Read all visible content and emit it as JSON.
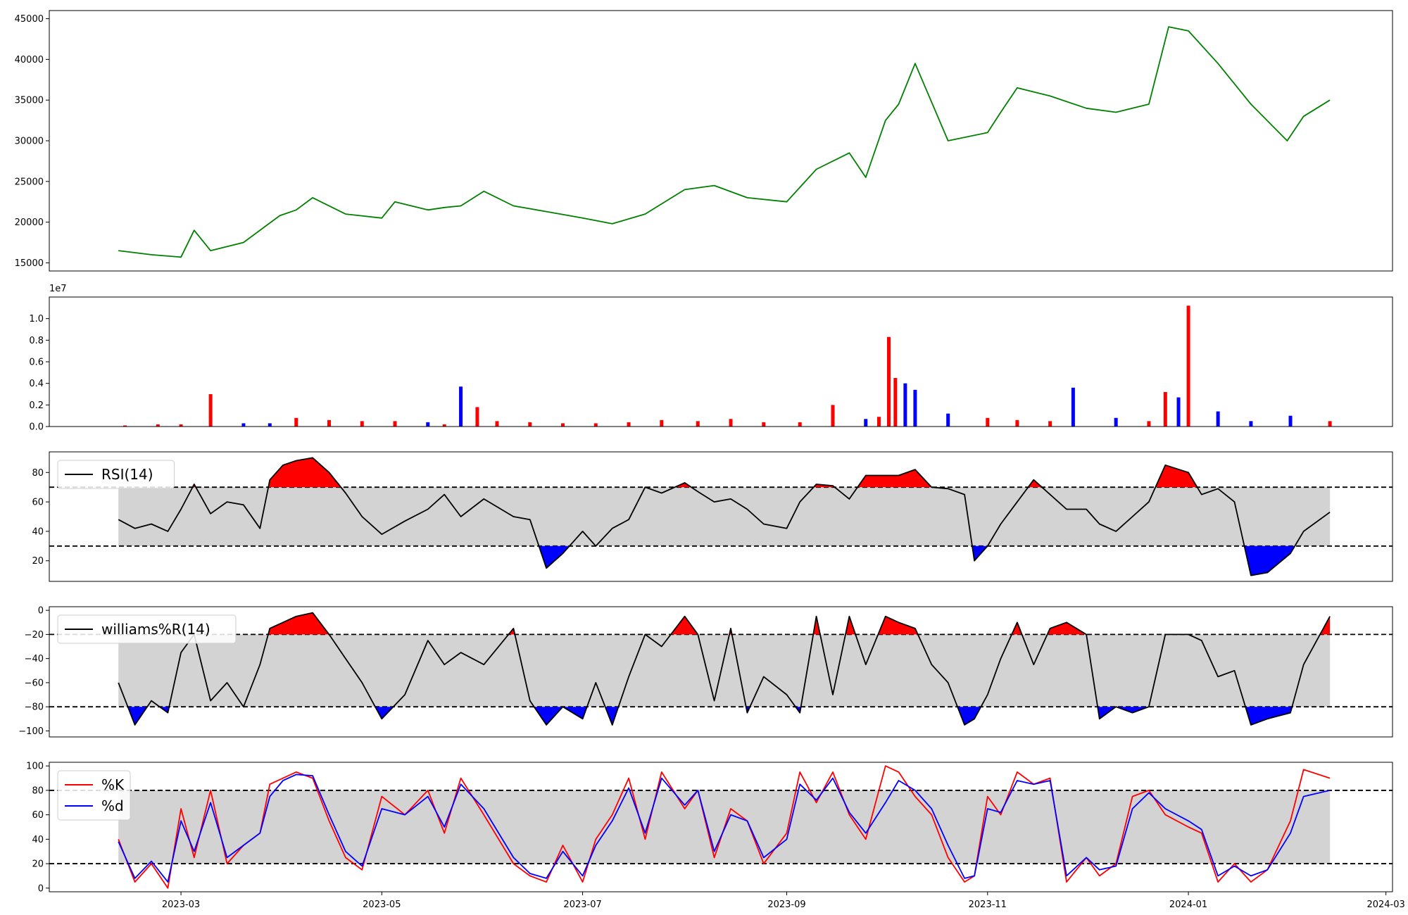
{
  "chart_data": [
    {
      "type": "line",
      "panel": "price",
      "ylim": [
        14000,
        46000
      ],
      "yticks": [
        15000,
        20000,
        25000,
        30000,
        35000,
        40000,
        45000
      ],
      "color": "#008000",
      "x": [
        "2023-02-10",
        "2023-02-20",
        "2023-03-01",
        "2023-03-05",
        "2023-03-10",
        "2023-03-20",
        "2023-03-31",
        "2023-04-05",
        "2023-04-10",
        "2023-04-20",
        "2023-05-01",
        "2023-05-05",
        "2023-05-15",
        "2023-05-20",
        "2023-05-25",
        "2023-06-01",
        "2023-06-10",
        "2023-06-20",
        "2023-07-01",
        "2023-07-10",
        "2023-07-20",
        "2023-08-01",
        "2023-08-10",
        "2023-08-20",
        "2023-09-01",
        "2023-09-10",
        "2023-09-20",
        "2023-09-25",
        "2023-10-01",
        "2023-10-05",
        "2023-10-10",
        "2023-10-20",
        "2023-11-01",
        "2023-11-05",
        "2023-11-10",
        "2023-11-20",
        "2023-12-01",
        "2023-12-10",
        "2023-12-20",
        "2023-12-26",
        "2024-01-01",
        "2024-01-10",
        "2024-01-20",
        "2024-01-31",
        "2024-02-05",
        "2024-02-13"
      ],
      "values": [
        16500,
        16000,
        15700,
        19000,
        16500,
        17500,
        20800,
        21500,
        23000,
        21000,
        20500,
        22500,
        21500,
        21800,
        22000,
        23800,
        22000,
        21300,
        20500,
        19800,
        21000,
        24000,
        24500,
        23000,
        22500,
        26500,
        28500,
        25500,
        32500,
        34500,
        39500,
        30000,
        31000,
        33500,
        36500,
        35500,
        34000,
        33500,
        34500,
        44000,
        43500,
        39500,
        34500,
        30000,
        33000,
        35000
      ]
    },
    {
      "type": "bar",
      "panel": "volume",
      "ylim": [
        0,
        1.2
      ],
      "yticks": [
        0.0,
        0.2,
        0.4,
        0.6,
        0.8,
        1.0
      ],
      "ytick_labels": [
        "0.0",
        "0.2",
        "0.4",
        "0.6",
        "0.8",
        "1.0"
      ],
      "scale_label": "1e7",
      "up_color": "#ff0000",
      "down_color": "#0000ff",
      "flat_color": "#000000",
      "x": [
        "2023-02-12",
        "2023-02-22",
        "2023-03-01",
        "2023-03-10",
        "2023-03-20",
        "2023-03-28",
        "2023-04-05",
        "2023-04-15",
        "2023-04-25",
        "2023-05-05",
        "2023-05-15",
        "2023-05-20",
        "2023-05-25",
        "2023-05-30",
        "2023-06-05",
        "2023-06-15",
        "2023-06-25",
        "2023-07-05",
        "2023-07-15",
        "2023-07-25",
        "2023-08-05",
        "2023-08-15",
        "2023-08-25",
        "2023-09-05",
        "2023-09-15",
        "2023-09-25",
        "2023-09-29",
        "2023-10-02",
        "2023-10-04",
        "2023-10-07",
        "2023-10-10",
        "2023-10-20",
        "2023-11-01",
        "2023-11-10",
        "2023-11-20",
        "2023-11-27",
        "2023-12-10",
        "2023-12-20",
        "2023-12-25",
        "2023-12-29",
        "2024-01-01",
        "2024-01-10",
        "2024-01-20",
        "2024-02-01",
        "2024-02-13"
      ],
      "values": [
        0.01,
        0.02,
        0.02,
        0.3,
        0.03,
        0.03,
        0.08,
        0.06,
        0.05,
        0.05,
        0.04,
        0.02,
        0.37,
        0.18,
        0.05,
        0.04,
        0.03,
        0.03,
        0.04,
        0.06,
        0.05,
        0.07,
        0.04,
        0.04,
        0.2,
        0.07,
        0.09,
        0.83,
        0.45,
        0.4,
        0.34,
        0.12,
        0.08,
        0.06,
        0.05,
        0.36,
        0.08,
        0.05,
        0.32,
        0.27,
        1.12,
        0.14,
        0.05,
        0.1,
        0.05
      ],
      "directions": [
        "up",
        "up",
        "up",
        "up",
        "down",
        "down",
        "up",
        "up",
        "up",
        "up",
        "down",
        "up",
        "down",
        "up",
        "up",
        "up",
        "up",
        "up",
        "up",
        "up",
        "up",
        "up",
        "up",
        "up",
        "up",
        "down",
        "up",
        "up",
        "up",
        "down",
        "down",
        "down",
        "up",
        "up",
        "up",
        "down",
        "down",
        "up",
        "up",
        "down",
        "up",
        "down",
        "down",
        "down",
        "up"
      ]
    },
    {
      "type": "line",
      "panel": "rsi",
      "ylim": [
        6,
        94
      ],
      "yticks": [
        20,
        40,
        60,
        80
      ],
      "upper": 70,
      "lower": 30,
      "series": [
        {
          "name": "RSI(14)",
          "color": "#000000"
        }
      ],
      "overbought_color": "#ff0000",
      "oversold_color": "#0000ff",
      "band_color": "#d3d3d3",
      "x": [
        "2023-02-10",
        "2023-02-15",
        "2023-02-20",
        "2023-02-25",
        "2023-03-01",
        "2023-03-05",
        "2023-03-10",
        "2023-03-15",
        "2023-03-20",
        "2023-03-25",
        "2023-03-28",
        "2023-04-01",
        "2023-04-05",
        "2023-04-10",
        "2023-04-15",
        "2023-04-20",
        "2023-04-25",
        "2023-05-01",
        "2023-05-08",
        "2023-05-15",
        "2023-05-20",
        "2023-05-25",
        "2023-06-01",
        "2023-06-10",
        "2023-06-15",
        "2023-06-20",
        "2023-06-25",
        "2023-07-01",
        "2023-07-05",
        "2023-07-10",
        "2023-07-15",
        "2023-07-20",
        "2023-07-25",
        "2023-08-01",
        "2023-08-05",
        "2023-08-10",
        "2023-08-15",
        "2023-08-20",
        "2023-08-25",
        "2023-09-01",
        "2023-09-05",
        "2023-09-10",
        "2023-09-15",
        "2023-09-20",
        "2023-09-25",
        "2023-10-01",
        "2023-10-05",
        "2023-10-10",
        "2023-10-15",
        "2023-10-20",
        "2023-10-25",
        "2023-10-28",
        "2023-11-01",
        "2023-11-05",
        "2023-11-10",
        "2023-11-15",
        "2023-11-20",
        "2023-11-25",
        "2023-12-01",
        "2023-12-05",
        "2023-12-10",
        "2023-12-15",
        "2023-12-20",
        "2023-12-25",
        "2024-01-01",
        "2024-01-05",
        "2024-01-10",
        "2024-01-15",
        "2024-01-20",
        "2024-01-25",
        "2024-02-01",
        "2024-02-05",
        "2024-02-13"
      ],
      "values": [
        48,
        42,
        45,
        40,
        55,
        72,
        52,
        60,
        58,
        42,
        75,
        85,
        88,
        90,
        80,
        66,
        50,
        38,
        47,
        55,
        65,
        50,
        62,
        50,
        48,
        15,
        25,
        40,
        30,
        42,
        48,
        70,
        66,
        73,
        67,
        60,
        62,
        55,
        45,
        42,
        60,
        72,
        71,
        62,
        78,
        78,
        78,
        82,
        70,
        69,
        65,
        20,
        30,
        45,
        60,
        75,
        65,
        55,
        55,
        45,
        40,
        50,
        60,
        85,
        80,
        65,
        69,
        60,
        10,
        12,
        25,
        40,
        53
      ]
    },
    {
      "type": "line",
      "panel": "williams",
      "ylim": [
        -105,
        3
      ],
      "yticks": [
        -100,
        -80,
        -60,
        -40,
        -20,
        0
      ],
      "ytick_labels": [
        "−100",
        "−80",
        "−60",
        "−40",
        "−20",
        "0"
      ],
      "upper": -20,
      "lower": -80,
      "series": [
        {
          "name": "williams%R(14)",
          "color": "#000000"
        }
      ],
      "overbought_color": "#ff0000",
      "oversold_color": "#0000ff",
      "band_color": "#d3d3d3",
      "x": [
        "2023-02-10",
        "2023-02-15",
        "2023-02-20",
        "2023-02-25",
        "2023-03-01",
        "2023-03-05",
        "2023-03-10",
        "2023-03-15",
        "2023-03-20",
        "2023-03-25",
        "2023-03-28",
        "2023-04-01",
        "2023-04-05",
        "2023-04-10",
        "2023-04-15",
        "2023-04-20",
        "2023-04-25",
        "2023-05-01",
        "2023-05-08",
        "2023-05-15",
        "2023-05-20",
        "2023-05-25",
        "2023-06-01",
        "2023-06-10",
        "2023-06-15",
        "2023-06-20",
        "2023-06-25",
        "2023-07-01",
        "2023-07-05",
        "2023-07-10",
        "2023-07-15",
        "2023-07-20",
        "2023-07-25",
        "2023-08-01",
        "2023-08-05",
        "2023-08-10",
        "2023-08-15",
        "2023-08-20",
        "2023-08-25",
        "2023-09-01",
        "2023-09-05",
        "2023-09-10",
        "2023-09-15",
        "2023-09-20",
        "2023-09-25",
        "2023-10-01",
        "2023-10-05",
        "2023-10-10",
        "2023-10-15",
        "2023-10-20",
        "2023-10-25",
        "2023-10-28",
        "2023-11-01",
        "2023-11-05",
        "2023-11-10",
        "2023-11-15",
        "2023-11-20",
        "2023-11-25",
        "2023-12-01",
        "2023-12-05",
        "2023-12-10",
        "2023-12-15",
        "2023-12-20",
        "2023-12-25",
        "2024-01-01",
        "2024-01-05",
        "2024-01-10",
        "2024-01-15",
        "2024-01-20",
        "2024-01-25",
        "2024-02-01",
        "2024-02-05",
        "2024-02-13"
      ],
      "values": [
        -60,
        -95,
        -75,
        -85,
        -35,
        -20,
        -75,
        -60,
        -80,
        -45,
        -15,
        -10,
        -5,
        -2,
        -20,
        -40,
        -60,
        -90,
        -70,
        -25,
        -45,
        -35,
        -45,
        -15,
        -75,
        -95,
        -80,
        -90,
        -60,
        -95,
        -55,
        -20,
        -30,
        -5,
        -20,
        -75,
        -15,
        -85,
        -55,
        -70,
        -85,
        -5,
        -70,
        -5,
        -45,
        -5,
        -10,
        -15,
        -45,
        -60,
        -95,
        -90,
        -70,
        -40,
        -10,
        -45,
        -15,
        -10,
        -20,
        -90,
        -80,
        -85,
        -80,
        -20,
        -20,
        -25,
        -55,
        -50,
        -95,
        -90,
        -85,
        -45,
        -5
      ]
    },
    {
      "type": "line",
      "panel": "stochastic",
      "ylim": [
        -3,
        103
      ],
      "yticks": [
        0,
        20,
        40,
        60,
        80,
        100
      ],
      "upper": 80,
      "lower": 20,
      "band_color": "#d3d3d3",
      "series": [
        {
          "name": "%K",
          "color": "#ff0000",
          "values": [
            40,
            5,
            20,
            0,
            65,
            25,
            80,
            20,
            35,
            45,
            85,
            90,
            95,
            90,
            55,
            25,
            15,
            75,
            60,
            80,
            45,
            90,
            60,
            20,
            10,
            5,
            35,
            5,
            40,
            60,
            90,
            40,
            95,
            65,
            80,
            25,
            65,
            55,
            20,
            45,
            95,
            70,
            95,
            60,
            40,
            100,
            95,
            75,
            60,
            25,
            5,
            10,
            75,
            60,
            95,
            85,
            90,
            5,
            25,
            10,
            20,
            75,
            80,
            60,
            50,
            45,
            5,
            20,
            5,
            15,
            55,
            97,
            90
          ]
        },
        {
          "name": "%d",
          "color": "#0000ff",
          "values": [
            38,
            8,
            22,
            5,
            55,
            30,
            70,
            25,
            35,
            45,
            75,
            88,
            93,
            92,
            60,
            30,
            18,
            65,
            60,
            75,
            50,
            85,
            65,
            25,
            12,
            8,
            30,
            10,
            35,
            55,
            82,
            45,
            90,
            68,
            80,
            30,
            60,
            55,
            25,
            40,
            85,
            72,
            90,
            62,
            45,
            70,
            88,
            80,
            65,
            35,
            8,
            10,
            65,
            62,
            88,
            85,
            88,
            10,
            25,
            15,
            18,
            65,
            78,
            65,
            55,
            48,
            10,
            18,
            10,
            15,
            45,
            75,
            80
          ]
        }
      ],
      "x": [
        "2023-02-10",
        "2023-02-15",
        "2023-02-20",
        "2023-02-25",
        "2023-03-01",
        "2023-03-05",
        "2023-03-10",
        "2023-03-15",
        "2023-03-20",
        "2023-03-25",
        "2023-03-28",
        "2023-04-01",
        "2023-04-05",
        "2023-04-10",
        "2023-04-15",
        "2023-04-20",
        "2023-04-25",
        "2023-05-01",
        "2023-05-08",
        "2023-05-15",
        "2023-05-20",
        "2023-05-25",
        "2023-06-01",
        "2023-06-10",
        "2023-06-15",
        "2023-06-20",
        "2023-06-25",
        "2023-07-01",
        "2023-07-05",
        "2023-07-10",
        "2023-07-15",
        "2023-07-20",
        "2023-07-25",
        "2023-08-01",
        "2023-08-05",
        "2023-08-10",
        "2023-08-15",
        "2023-08-20",
        "2023-08-25",
        "2023-09-01",
        "2023-09-05",
        "2023-09-10",
        "2023-09-15",
        "2023-09-20",
        "2023-09-25",
        "2023-10-01",
        "2023-10-05",
        "2023-10-10",
        "2023-10-15",
        "2023-10-20",
        "2023-10-25",
        "2023-10-28",
        "2023-11-01",
        "2023-11-05",
        "2023-11-10",
        "2023-11-15",
        "2023-11-20",
        "2023-11-25",
        "2023-12-01",
        "2023-12-05",
        "2023-12-10",
        "2023-12-15",
        "2023-12-20",
        "2023-12-25",
        "2024-01-01",
        "2024-01-05",
        "2024-01-10",
        "2024-01-15",
        "2024-01-20",
        "2024-01-25",
        "2024-02-01",
        "2024-02-05",
        "2024-02-13"
      ]
    }
  ],
  "x_axis": {
    "range": [
      "2023-01-20",
      "2024-03-03"
    ],
    "ticks": [
      "2023-03-01",
      "2023-05-01",
      "2023-07-01",
      "2023-09-01",
      "2023-11-01",
      "2024-01-01",
      "2024-03-01"
    ],
    "tick_labels": [
      "2023-03",
      "2023-05",
      "2023-07",
      "2023-09",
      "2023-11",
      "2024-01",
      "2024-03"
    ]
  }
}
